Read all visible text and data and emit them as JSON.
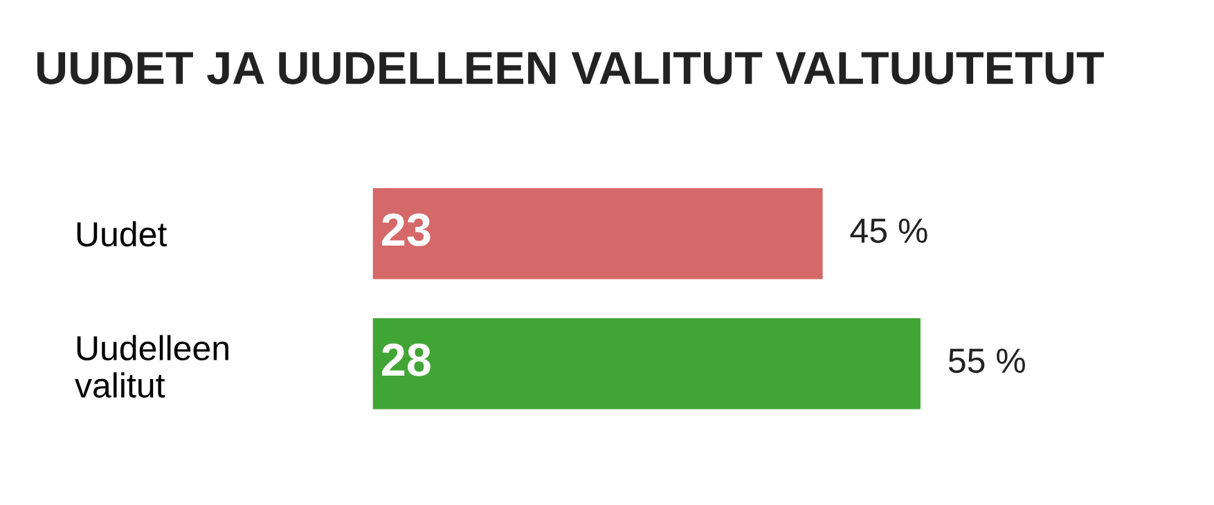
{
  "chart_data": {
    "type": "bar",
    "orientation": "horizontal",
    "title": "UUDET JA UUDELLEEN VALITUT VALTUUTETUT",
    "categories": [
      "Uudet",
      "Uudelleen valitut"
    ],
    "values": [
      23,
      28
    ],
    "colors": [
      "#d56868",
      "#41a535"
    ],
    "data_labels": true,
    "annotations": [
      {
        "text": "45 %",
        "x": 23,
        "y": "Uudet"
      },
      {
        "text": "55 %",
        "x": 28,
        "y": "Uudelleen valitut"
      }
    ],
    "grid": false,
    "legend": false
  }
}
